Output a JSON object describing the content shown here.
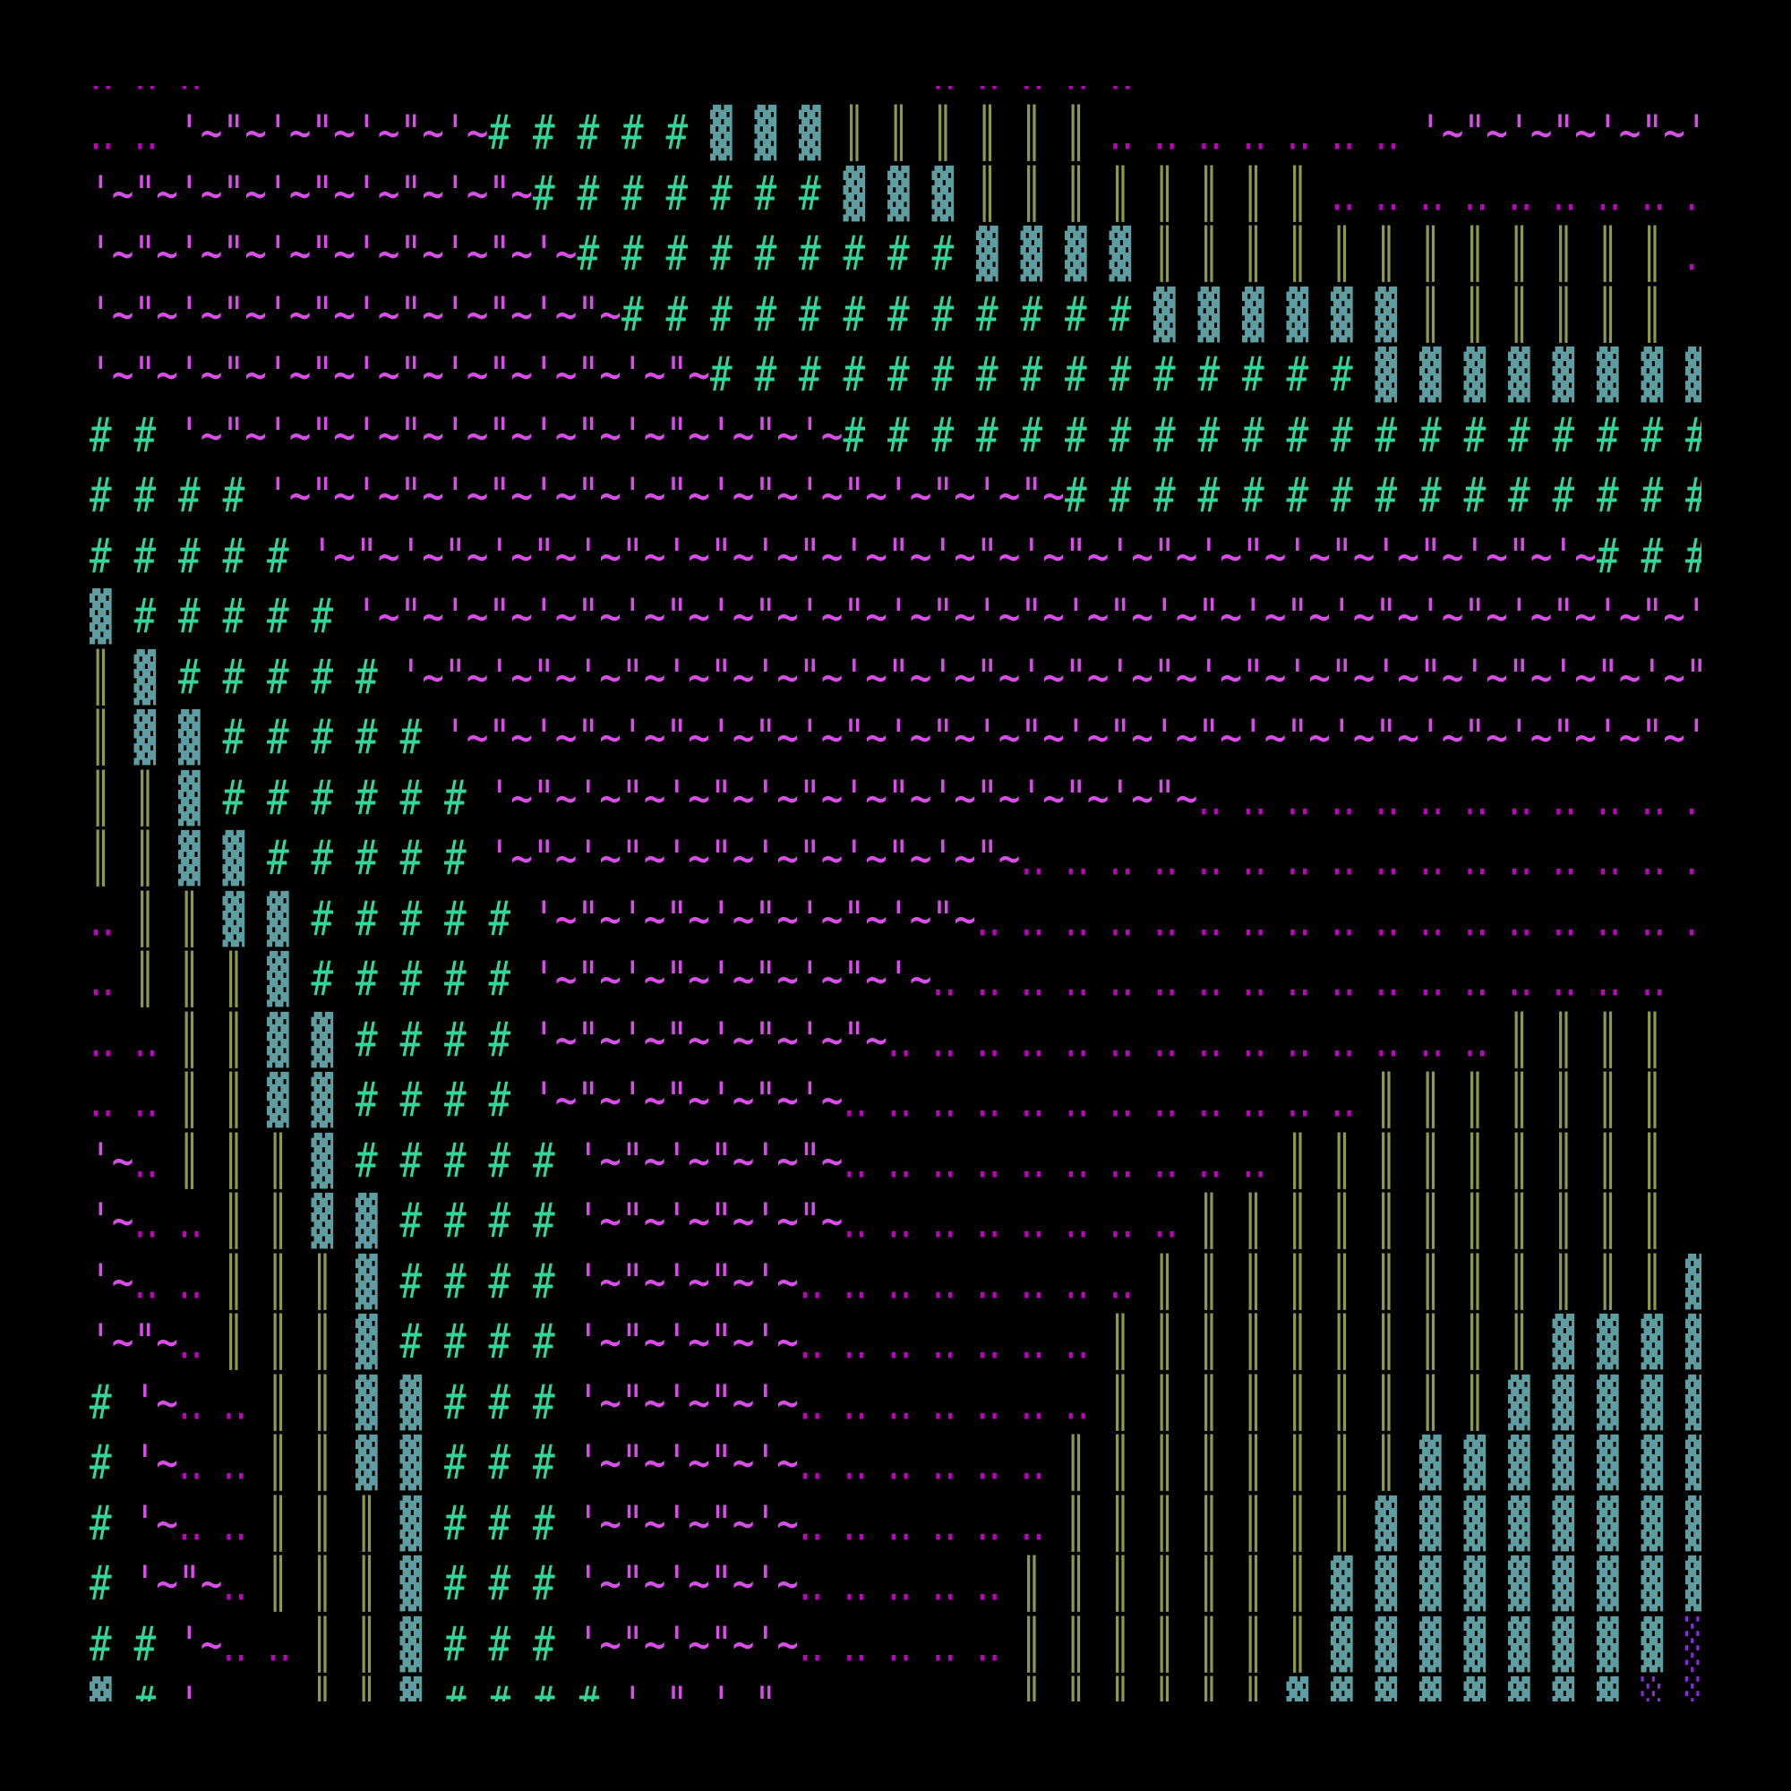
{
  "colors": {
    "background": "#000000",
    "tilde_quote": "#d94de8",
    "dots": "#c000c0",
    "hash": "#33d699",
    "dense_shade": "#5f9ea0",
    "double_bar": "#8c9a48",
    "light_shade": "#8a2be2"
  },
  "rows": [
    "‥ ‥ ‥                                 ‥ ‥ ‥ ‥ ‥",
    "‥ ‥ '~\"~'~\"~'~\"~'~# # # # # ▓ ▓ ▓ ║ ║ ║ ║ ║ ║ ‥ ‥ ‥ ‥ ‥ ‥ ‥ '~\"~'~\"~'~\"~'~",
    "'~\"~'~\"~'~\"~'~\"~'~\"~# # # # # # # ▓ ▓ ▓ ║ ║ ║ ║ ║ ║ ║ ║ ‥ ‥ ‥ ‥ ‥ ‥ ‥ ‥ ‥ ",
    "'~\"~'~\"~'~\"~'~\"~'~\"~'~# # # # # # # # # ▓ ▓ ▓ ▓ ║ ║ ║ ║ ║ ║ ║ ║ ║ ║ ║ ║ ‥ ",
    "'~\"~'~\"~'~\"~'~\"~'~\"~'~\"~# # # # # # # # # # # # ▓ ▓ ▓ ▓ ▓ ▓ ║ ║ ║ ║ ║ ║   ",
    "'~\"~'~\"~'~\"~'~\"~'~\"~'~\"~'~\"~# # # # # # # # # # # # # # # ▓ ▓ ▓ ▓ ▓ ▓ ▓ ▓ ",
    "# # '~\"~'~\"~'~\"~'~\"~'~\"~'~\"~'~\"~'~# # # # # # # # # # # # # # # # # # # # ",
    "# # # # '~\"~'~\"~'~\"~'~\"~'~\"~'~\"~'~\"~'~\"~'~\"~# # # # # # # # # # # # # # # ",
    "# # # # # '~\"~'~\"~'~\"~'~\"~'~\"~'~\"~'~\"~'~\"~'~\"~'~\"~'~\"~'~\"~'~\"~'~\"~'~# # # ",
    "▓ # # # # # '~\"~'~\"~'~\"~'~\"~'~\"~'~\"~'~\"~'~\"~'~\"~'~\"~'~\"~'~\"~'~\"~'~\"~'~\"~'~",
    "║ ▓ # # # # # '~\"~'~\"~'~\"~'~\"~'~\"~'~\"~'~\"~'~\"~'~\"~'~\"~'~\"~'~\"~'~\"~'~\"~'~\"~",
    "║ ▓ ▓ # # # # # '~\"~'~\"~'~\"~'~\"~'~\"~'~\"~'~\"~'~\"~'~\"~'~\"~'~\"~'~\"~'~\"~'~\"~'~",
    "║ ║ ▓ # # # # # # '~\"~'~\"~'~\"~'~\"~'~\"~'~\"~'~\"~'~\"~‥ ‥ ‥ ‥ ‥ ‥ ‥ ‥ ‥ ‥ ‥ ‥ ",
    "║ ║ ▓ ▓ # # # # # '~\"~'~\"~'~\"~'~\"~'~\"~'~\"~‥ ‥ ‥ ‥ ‥ ‥ ‥ ‥ ‥ ‥ ‥ ‥ ‥ ‥ ‥ ‥ ",
    "‥ ║ ║ ▓ ▓ # # # # # '~\"~'~\"~'~\"~'~\"~'~\"~‥ ‥ ‥ ‥ ‥ ‥ ‥ ‥ ‥ ‥ ‥ ‥ ‥ ‥ ‥ ‥ ‥ ",
    "‥ ║ ║ ║ ▓ # # # # # '~\"~'~\"~'~\"~'~\"~'~‥ ‥ ‥ ‥ ‥ ‥ ‥ ‥ ‥ ‥ ‥ ‥ ‥ ‥ ‥ ‥ ‥   ",
    "‥ ‥ ║ ║ ▓ ▓ # # # # '~\"~'~\"~'~\"~'~\"~‥ ‥ ‥ ‥ ‥ ‥ ‥ ‥ ‥ ‥ ‥ ‥ ‥ ‥ ║ ║ ║ ║   ",
    "‥ ‥ ║ ║ ▓ ▓ # # # # '~\"~'~\"~'~\"~'~‥ ‥ ‥ ‥ ‥ ‥ ‥ ‥ ‥ ‥ ‥ ‥ ║ ║ ║ ║ ║ ║ ║   ",
    "'~‥ ║ ║ ║ ▓ # # # # # '~\"~'~\"~'~\"~‥ ‥ ‥ ‥ ‥ ‥ ‥ ‥ ‥ ‥ ║ ║ ║ ║ ║ ║ ║ ║ ║   ",
    "'~‥ ‥ ║ ║ ▓ ▓ # # # # '~\"~'~\"~'~\"~‥ ‥ ‥ ‥ ‥ ‥ ‥ ‥ ║ ║ ║ ║ ║ ║ ║ ║ ║ ║ ║   ",
    "'~‥ ‥ ║ ║ ║ ▓ # # # # '~\"~'~\"~'~‥ ‥ ‥ ‥ ‥ ‥ ‥ ‥ ║ ║ ║ ║ ║ ║ ║ ║ ║ ║ ║ ║ ▓ ",
    "'~\"~‥ ║ ║ ║ ▓ # # # # '~\"~'~\"~'~‥ ‥ ‥ ‥ ‥ ‥ ‥ ║ ║ ║ ║ ║ ║ ║ ║ ║ ║ ▓ ▓ ▓ ▓ ",
    "# '~‥ ‥ ║ ║ ▓ ▓ # # # '~\"~'~\"~'~‥ ‥ ‥ ‥ ‥ ‥ ‥ ║ ║ ║ ║ ║ ║ ║ ║ ║ ▓ ▓ ▓ ▓ ▓ ",
    "# '~‥ ‥ ║ ║ ▓ ▓ # # # '~\"~'~\"~'~‥ ‥ ‥ ‥ ‥ ‥ ║ ║ ║ ║ ║ ║ ║ ║ ▓ ▓ ▓ ▓ ▓ ▓ ▓ ",
    "# '~‥ ‥ ║ ║ ║ ▓ # # # '~\"~'~\"~'~‥ ‥ ‥ ‥ ‥ ‥ ║ ║ ║ ║ ║ ║ ║ ▓ ▓ ▓ ▓ ▓ ▓ ▓ ▓ ",
    "# '~\"~‥ ║ ║ ║ ▓ # # # '~\"~'~\"~'~‥ ‥ ‥ ‥ ‥ ║ ║ ║ ║ ║ ║ ║ ▓ ▓ ▓ ▓ ▓ ▓ ▓ ▓ ▓ ",
    "# # '~‥ ‥ ║ ║ ▓ # # # '~\"~'~\"~'~‥ ‥ ‥ ‥ ‥ ║ ║ ║ ║ ║ ║ ║ ▓ ▓ ▓ ▓ ▓ ▓ ▓ ▓ ░ ",
    "▓ # '~    ║ ║ ▓ # # # # '~\"~'~\"~          ║ ║ ║ ║ ║ ║ ▓ ▓ ▓ ▓ ▓ ▓ ▓ ▓ ░ ░ "
  ]
}
